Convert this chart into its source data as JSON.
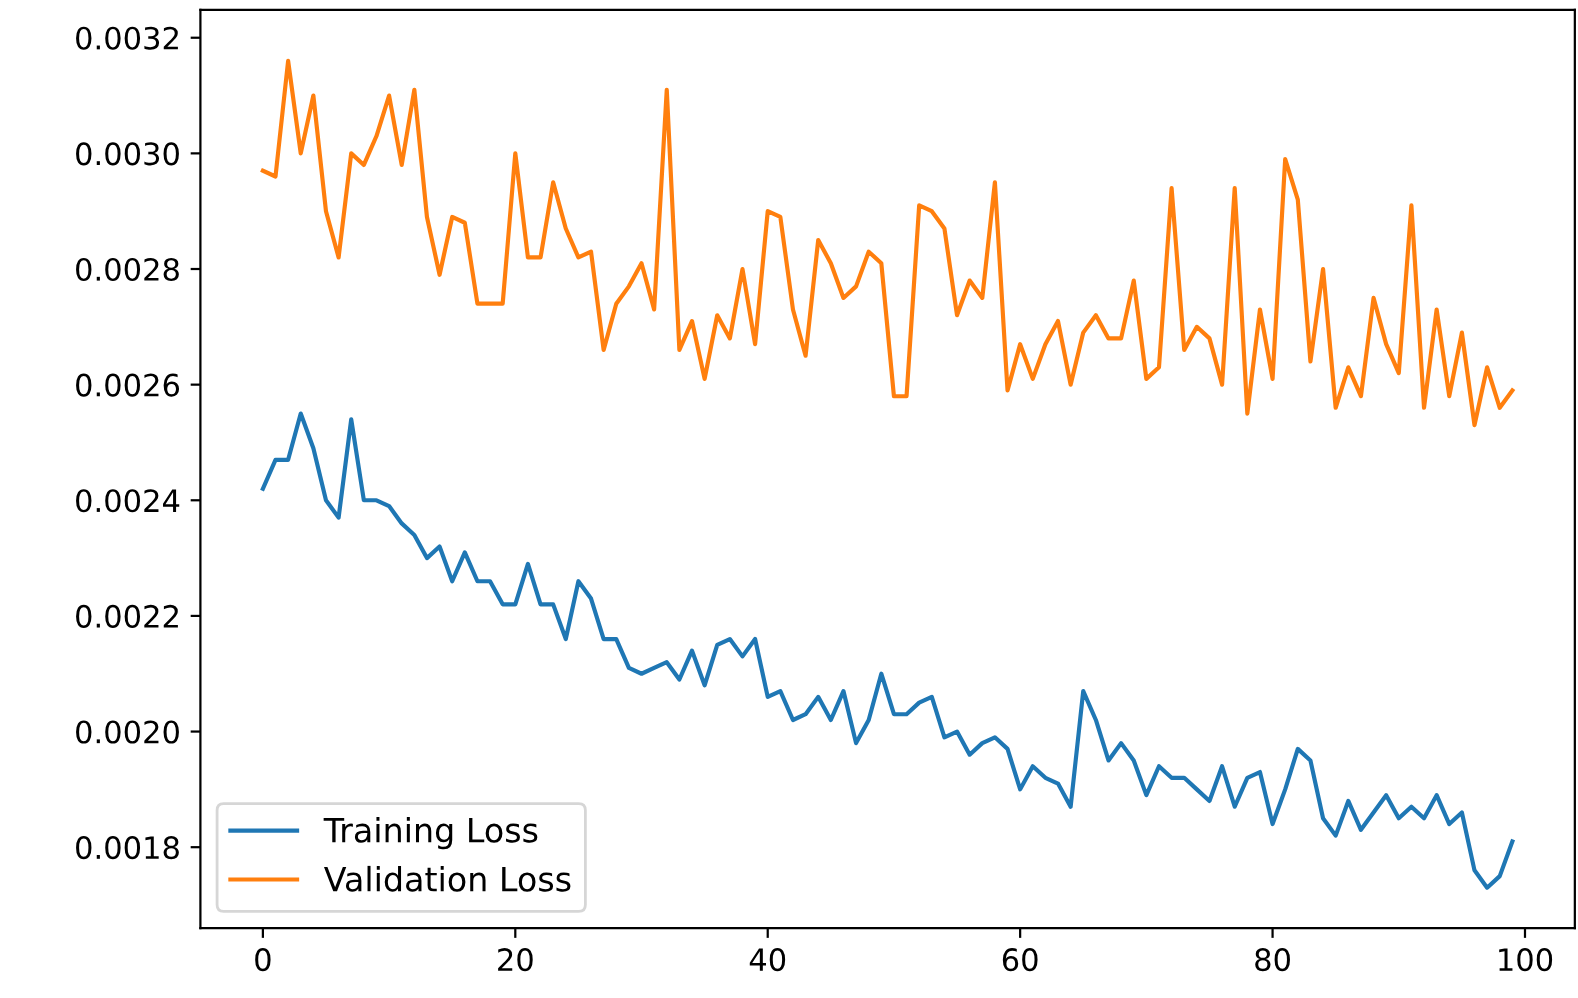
{
  "chart_data": {
    "type": "line",
    "x": [
      0,
      1,
      2,
      3,
      4,
      5,
      6,
      7,
      8,
      9,
      10,
      11,
      12,
      13,
      14,
      15,
      16,
      17,
      18,
      19,
      20,
      21,
      22,
      23,
      24,
      25,
      26,
      27,
      28,
      29,
      30,
      31,
      32,
      33,
      34,
      35,
      36,
      37,
      38,
      39,
      40,
      41,
      42,
      43,
      44,
      45,
      46,
      47,
      48,
      49,
      50,
      51,
      52,
      53,
      54,
      55,
      56,
      57,
      58,
      59,
      60,
      61,
      62,
      63,
      64,
      65,
      66,
      67,
      68,
      69,
      70,
      71,
      72,
      73,
      74,
      75,
      76,
      77,
      78,
      79,
      80,
      81,
      82,
      83,
      84,
      85,
      86,
      87,
      88,
      89,
      90,
      91,
      92,
      93,
      94,
      95,
      96,
      97,
      98,
      99
    ],
    "series": [
      {
        "name": "Training Loss",
        "color": "#1f77b4",
        "values": [
          0.00242,
          0.00247,
          0.00247,
          0.00255,
          0.00249,
          0.0024,
          0.00237,
          0.00254,
          0.0024,
          0.0024,
          0.00239,
          0.00236,
          0.00234,
          0.0023,
          0.00232,
          0.00226,
          0.00231,
          0.00226,
          0.00226,
          0.00222,
          0.00222,
          0.00229,
          0.00222,
          0.00222,
          0.00216,
          0.00226,
          0.00223,
          0.00216,
          0.00216,
          0.00211,
          0.0021,
          0.00211,
          0.00212,
          0.00209,
          0.00214,
          0.00208,
          0.00215,
          0.00216,
          0.00213,
          0.00216,
          0.00206,
          0.00207,
          0.00202,
          0.00203,
          0.00206,
          0.00202,
          0.00207,
          0.00198,
          0.00202,
          0.0021,
          0.00203,
          0.00203,
          0.00205,
          0.00206,
          0.00199,
          0.002,
          0.00196,
          0.00198,
          0.00199,
          0.00197,
          0.0019,
          0.00194,
          0.00192,
          0.00191,
          0.00187,
          0.00207,
          0.00202,
          0.00195,
          0.00198,
          0.00195,
          0.00189,
          0.00194,
          0.00192,
          0.00192,
          0.0019,
          0.00188,
          0.00194,
          0.00187,
          0.00192,
          0.00193,
          0.00184,
          0.0019,
          0.00197,
          0.00195,
          0.00185,
          0.00182,
          0.00188,
          0.00183,
          0.00186,
          0.00189,
          0.00185,
          0.00187,
          0.00185,
          0.00189,
          0.00184,
          0.00186,
          0.00176,
          0.00173,
          0.00175,
          0.00181
        ]
      },
      {
        "name": "Validation Loss",
        "color": "#ff7f0e",
        "values": [
          0.00297,
          0.00296,
          0.00316,
          0.003,
          0.0031,
          0.0029,
          0.00282,
          0.003,
          0.00298,
          0.00303,
          0.0031,
          0.00298,
          0.00311,
          0.00289,
          0.00279,
          0.00289,
          0.00288,
          0.00274,
          0.00274,
          0.00274,
          0.003,
          0.00282,
          0.00282,
          0.00295,
          0.00287,
          0.00282,
          0.00283,
          0.00266,
          0.00274,
          0.00277,
          0.00281,
          0.00273,
          0.00311,
          0.00266,
          0.00271,
          0.00261,
          0.00272,
          0.00268,
          0.0028,
          0.00267,
          0.0029,
          0.00289,
          0.00273,
          0.00265,
          0.00285,
          0.00281,
          0.00275,
          0.00277,
          0.00283,
          0.00281,
          0.00258,
          0.00258,
          0.00291,
          0.0029,
          0.00287,
          0.00272,
          0.00278,
          0.00275,
          0.00295,
          0.00259,
          0.00267,
          0.00261,
          0.00267,
          0.00271,
          0.0026,
          0.00269,
          0.00272,
          0.00268,
          0.00268,
          0.00278,
          0.00261,
          0.00263,
          0.00294,
          0.00266,
          0.0027,
          0.00268,
          0.0026,
          0.00294,
          0.00255,
          0.00273,
          0.00261,
          0.00299,
          0.00292,
          0.00264,
          0.0028,
          0.00256,
          0.00263,
          0.00258,
          0.00275,
          0.00267,
          0.00262,
          0.00291,
          0.00256,
          0.00273,
          0.00258,
          0.00269,
          0.00253,
          0.00263,
          0.00256,
          0.00259
        ]
      }
    ],
    "xlim": [
      -4.95,
      103.95
    ],
    "xticks": [
      0,
      20,
      40,
      60,
      80,
      100
    ],
    "ylim": [
      0.00166,
      0.003248
    ],
    "yticks": [
      {
        "value": 0.0018,
        "label": "0.0018"
      },
      {
        "value": 0.002,
        "label": "0.0020"
      },
      {
        "value": 0.0022,
        "label": "0.0022"
      },
      {
        "value": 0.0024,
        "label": "0.0024"
      },
      {
        "value": 0.0026,
        "label": "0.0026"
      },
      {
        "value": 0.0028,
        "label": "0.0028"
      },
      {
        "value": 0.003,
        "label": "0.0030"
      },
      {
        "value": 0.0032,
        "label": "0.0032"
      }
    ],
    "grid": false,
    "legend": "bottom left"
  }
}
